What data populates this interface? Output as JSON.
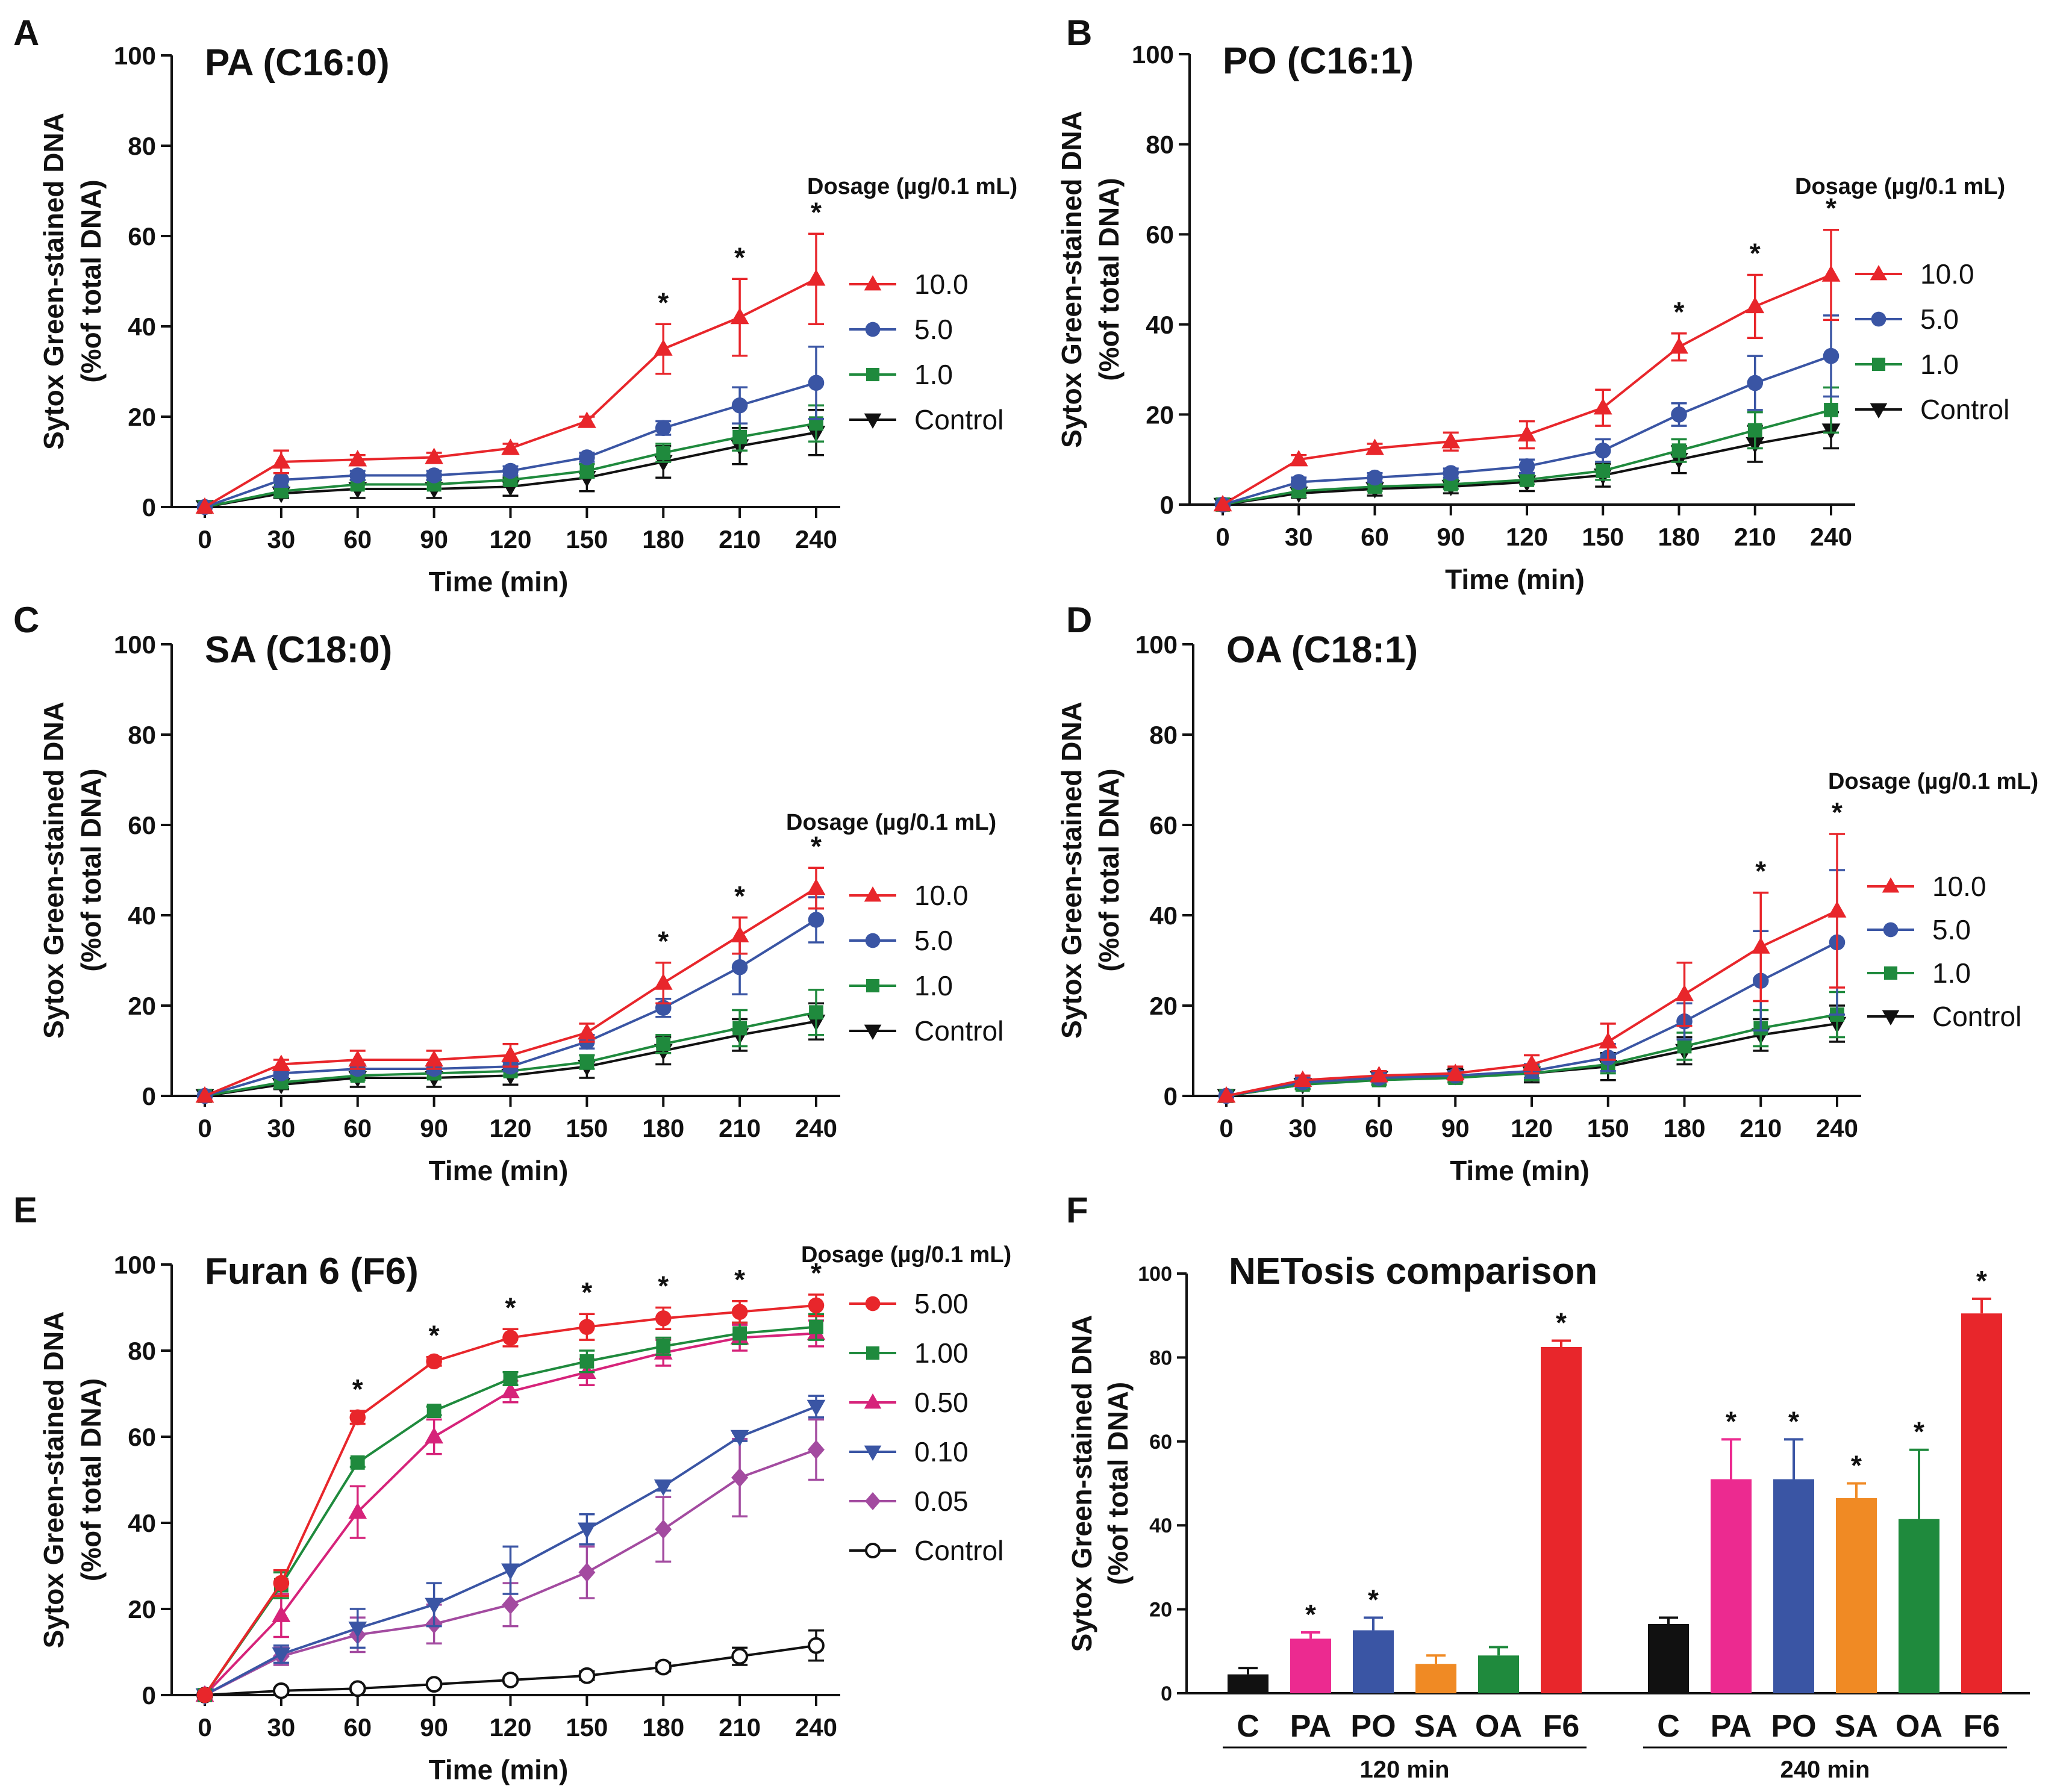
{
  "figure": {
    "y_axis_line1": "Sytox Green-stained DNA",
    "y_axis_line2": "(%of total DNA)",
    "x_axis_label": "Time (min)"
  },
  "chart_data": [
    {
      "id": "A",
      "panel_label": "A",
      "type": "line",
      "title": "PA (C16:0)",
      "xlabel": "Time (min)",
      "ylabel": "Sytox Green-stained DNA (%of total DNA)",
      "x": [
        0,
        30,
        60,
        90,
        120,
        150,
        180,
        210,
        240
      ],
      "ylim": [
        0,
        100
      ],
      "yticks": [
        0,
        20,
        40,
        60,
        80,
        100
      ],
      "legend_title": "Dosage (µg/0.1 mL)",
      "series": [
        {
          "name": "10.0",
          "color": "#e8262b",
          "marker": "triangle-up",
          "values": [
            0,
            10,
            10.5,
            11,
            13,
            19,
            35,
            42,
            50.5
          ],
          "err": [
            0,
            2.5,
            1,
            1,
            1,
            1,
            5.5,
            8.5,
            10
          ]
        },
        {
          "name": "5.0",
          "color": "#3a55a4",
          "marker": "circle",
          "values": [
            0,
            6,
            7,
            7,
            8,
            11,
            17.5,
            22.5,
            27.5
          ],
          "err": [
            0,
            1.5,
            1,
            1,
            1,
            1,
            1.5,
            4,
            8
          ]
        },
        {
          "name": "1.0",
          "color": "#1f8a3d",
          "marker": "square",
          "values": [
            0,
            3.5,
            5,
            5,
            6,
            8,
            12,
            15.5,
            18.5
          ],
          "err": [
            0,
            1,
            1,
            1,
            1,
            1.5,
            2,
            3,
            4
          ]
        },
        {
          "name": "Control",
          "color": "#111111",
          "marker": "triangle-down",
          "values": [
            0,
            3,
            4,
            4,
            4.5,
            6.5,
            10,
            13.5,
            16.5
          ],
          "err": [
            0,
            1,
            2,
            2,
            2,
            3,
            3.5,
            4,
            5
          ]
        }
      ],
      "stars_at": [
        180,
        210,
        240
      ],
      "star_symbol": "*"
    },
    {
      "id": "B",
      "panel_label": "B",
      "type": "line",
      "title": "PO (C16:1)",
      "xlabel": "Time (min)",
      "ylabel": "Sytox Green-stained DNA (%of total DNA)",
      "x": [
        0,
        30,
        60,
        90,
        120,
        150,
        180,
        210,
        240
      ],
      "ylim": [
        0,
        100
      ],
      "yticks": [
        0,
        20,
        40,
        60,
        80,
        100
      ],
      "legend_title": "Dosage (µg/0.1 mL)",
      "series": [
        {
          "name": "10.0",
          "color": "#e8262b",
          "marker": "triangle-up",
          "values": [
            0,
            10,
            12.5,
            14,
            15.5,
            21.5,
            35,
            44,
            51
          ],
          "err": [
            0,
            1,
            1,
            2,
            3,
            4,
            3,
            7,
            10
          ]
        },
        {
          "name": "5.0",
          "color": "#3a55a4",
          "marker": "circle",
          "values": [
            0,
            5,
            6,
            7,
            8.5,
            12,
            20,
            27,
            33
          ],
          "err": [
            0,
            1,
            1,
            1,
            1.5,
            2.5,
            2.5,
            6,
            9
          ]
        },
        {
          "name": "1.0",
          "color": "#1f8a3d",
          "marker": "square",
          "values": [
            0,
            3,
            4,
            4.5,
            5.5,
            7.5,
            12,
            16.5,
            21
          ],
          "err": [
            0,
            1,
            1,
            1,
            1,
            2,
            2.5,
            4,
            5
          ]
        },
        {
          "name": "Control",
          "color": "#111111",
          "marker": "triangle-down",
          "values": [
            0,
            2.5,
            3.5,
            4,
            5,
            6.5,
            10,
            13.5,
            16.5
          ],
          "err": [
            0,
            1,
            1.5,
            1.5,
            2,
            2.5,
            3,
            4,
            4
          ]
        }
      ],
      "stars_at": [
        180,
        210,
        240
      ],
      "star_symbol": "*"
    },
    {
      "id": "C",
      "panel_label": "C",
      "type": "line",
      "title": "SA (C18:0)",
      "xlabel": "Time (min)",
      "ylabel": "Sytox Green-stained DNA (%of total DNA)",
      "x": [
        0,
        30,
        60,
        90,
        120,
        150,
        180,
        210,
        240
      ],
      "ylim": [
        0,
        100
      ],
      "yticks": [
        0,
        20,
        40,
        60,
        80,
        100
      ],
      "legend_title": "Dosage (µg/0.1 mL)",
      "series": [
        {
          "name": "10.0",
          "color": "#e8262b",
          "marker": "triangle-up",
          "values": [
            0,
            7,
            8,
            8,
            9,
            14,
            25,
            35.5,
            46
          ],
          "err": [
            0,
            1,
            2,
            2,
            2.5,
            2,
            4.5,
            4,
            4.5
          ]
        },
        {
          "name": "5.0",
          "color": "#3a55a4",
          "marker": "circle",
          "values": [
            0,
            5,
            6,
            6,
            6.5,
            12,
            19.5,
            28.5,
            39
          ],
          "err": [
            0,
            1,
            1,
            1,
            1,
            1.5,
            2,
            6,
            5
          ]
        },
        {
          "name": "1.0",
          "color": "#1f8a3d",
          "marker": "square",
          "values": [
            0,
            3,
            4.5,
            5,
            5.5,
            7.5,
            11.5,
            15,
            18.5
          ],
          "err": [
            0,
            1,
            1,
            1,
            1,
            1.5,
            2,
            4,
            5
          ]
        },
        {
          "name": "Control",
          "color": "#111111",
          "marker": "triangle-down",
          "values": [
            0,
            2.5,
            4,
            4,
            4.5,
            6.5,
            10,
            13.5,
            16.5
          ],
          "err": [
            0,
            1,
            2,
            2,
            2,
            2.5,
            3,
            3.5,
            4
          ]
        }
      ],
      "stars_at": [
        180,
        210,
        240
      ],
      "star_symbol": "*"
    },
    {
      "id": "D",
      "panel_label": "D",
      "type": "line",
      "title": "OA (C18:1)",
      "xlabel": "Time (min)",
      "ylabel": "Sytox Green-stained DNA (%of total DNA)",
      "x": [
        0,
        30,
        60,
        90,
        120,
        150,
        180,
        210,
        240
      ],
      "ylim": [
        0,
        100
      ],
      "yticks": [
        0,
        20,
        40,
        60,
        80,
        100
      ],
      "legend_title": "Dosage (µg/0.1 mL)",
      "series": [
        {
          "name": "10.0",
          "color": "#e8262b",
          "marker": "triangle-up",
          "values": [
            0,
            3.5,
            4.5,
            5,
            7,
            12,
            22.5,
            33,
            41
          ],
          "err": [
            0,
            1,
            1,
            1.5,
            2,
            4,
            7,
            12,
            17
          ]
        },
        {
          "name": "5.0",
          "color": "#3a55a4",
          "marker": "circle",
          "values": [
            0,
            3,
            4,
            4.5,
            5.5,
            8.5,
            16.5,
            25.5,
            34
          ],
          "err": [
            0,
            1,
            1,
            1,
            1.5,
            3,
            4,
            11,
            16
          ]
        },
        {
          "name": "1.0",
          "color": "#1f8a3d",
          "marker": "square",
          "values": [
            0,
            2.5,
            3.5,
            4,
            5,
            7,
            11,
            15,
            18
          ],
          "err": [
            0,
            1,
            1,
            1,
            1.5,
            2,
            3,
            4,
            5
          ]
        },
        {
          "name": "Control",
          "color": "#111111",
          "marker": "triangle-down",
          "values": [
            0,
            2.5,
            4,
            4.5,
            5,
            6.5,
            10,
            13.5,
            16
          ],
          "err": [
            0,
            1,
            1.5,
            1.5,
            2,
            3,
            3,
            3.5,
            4
          ]
        }
      ],
      "stars_at": [
        210,
        240
      ],
      "star_symbol": "*"
    },
    {
      "id": "E",
      "panel_label": "E",
      "type": "line",
      "title": "Furan 6 (F6)",
      "xlabel": "Time (min)",
      "ylabel": "Sytox Green-stained DNA (%of total DNA)",
      "x": [
        0,
        30,
        60,
        90,
        120,
        150,
        180,
        210,
        240
      ],
      "ylim": [
        0,
        100
      ],
      "yticks": [
        0,
        20,
        40,
        60,
        80,
        100
      ],
      "legend_title": "Dosage (µg/0.1 mL)",
      "series": [
        {
          "name": "5.00",
          "color": "#e8262b",
          "marker": "circle",
          "values": [
            0,
            26,
            64.5,
            77.5,
            83,
            85.5,
            87.5,
            89,
            90.5
          ],
          "err": [
            0,
            3,
            1.5,
            1,
            2,
            3,
            2.5,
            2.5,
            2.5
          ]
        },
        {
          "name": "1.00",
          "color": "#1f8a3d",
          "marker": "square",
          "values": [
            0,
            25.5,
            54,
            66,
            73.5,
            77.5,
            81,
            84,
            85.5
          ],
          "err": [
            0,
            3,
            1,
            1,
            1.5,
            2.5,
            2,
            2.5,
            3
          ]
        },
        {
          "name": "0.50",
          "color": "#d6237a",
          "marker": "triangle-up",
          "values": [
            0,
            18.5,
            42.5,
            60,
            70.5,
            75,
            79.5,
            83,
            84
          ],
          "err": [
            0,
            5,
            6,
            4,
            2.5,
            3,
            3,
            3,
            3
          ]
        },
        {
          "name": "0.10",
          "color": "#3a55a4",
          "marker": "triangle-down",
          "values": [
            0,
            9.5,
            15.5,
            21,
            29,
            38.5,
            48.5,
            60,
            67
          ],
          "err": [
            0,
            2,
            4.5,
            5,
            5.5,
            3.5,
            1,
            1,
            2.5
          ]
        },
        {
          "name": "0.05",
          "color": "#a34ba0",
          "marker": "diamond",
          "values": [
            0,
            9,
            14,
            16.5,
            21,
            28.5,
            38.5,
            50.5,
            57
          ],
          "err": [
            0,
            2,
            4,
            4.5,
            5,
            6,
            7.5,
            9,
            7
          ]
        },
        {
          "name": "Control",
          "color": "#111111",
          "marker": "open-circle",
          "values": [
            0,
            1,
            1.5,
            2.5,
            3.5,
            4.5,
            6.5,
            9,
            11.5
          ],
          "err": [
            0,
            0.5,
            0.5,
            0.5,
            0.5,
            1,
            1,
            2,
            3.5
          ]
        }
      ],
      "stars_at": [
        60,
        90,
        120,
        150,
        180,
        210,
        240
      ],
      "star_symbol": "*"
    },
    {
      "id": "F",
      "panel_label": "F",
      "type": "bar",
      "title": "NETosis comparison",
      "xlabel": "",
      "ylabel": "Sytox Green-stained DNA (%of total DNA)",
      "ylim": [
        0,
        100
      ],
      "yticks": [
        0,
        20,
        40,
        60,
        80,
        100
      ],
      "groups": [
        {
          "label": "120 min",
          "categories": [
            "C",
            "PA",
            "PO",
            "SA",
            "OA",
            "F6"
          ],
          "values": [
            4.5,
            13,
            15,
            7,
            9,
            82.5
          ],
          "err": [
            1.5,
            1.5,
            3,
            2,
            2,
            1.5
          ],
          "colors": [
            "#111111",
            "#ec2a90",
            "#3a55a4",
            "#f08a24",
            "#1f8a3d",
            "#e8262b"
          ],
          "stars": [
            false,
            true,
            true,
            false,
            false,
            true
          ]
        },
        {
          "label": "240 min",
          "categories": [
            "C",
            "PA",
            "PO",
            "SA",
            "OA",
            "F6"
          ],
          "values": [
            16.5,
            51,
            51,
            46.5,
            41.5,
            90.5
          ],
          "err": [
            1.5,
            9.5,
            9.5,
            3.5,
            16.5,
            3.5
          ],
          "colors": [
            "#111111",
            "#ec2a90",
            "#3a55a4",
            "#f08a24",
            "#1f8a3d",
            "#e8262b"
          ],
          "stars": [
            false,
            true,
            true,
            true,
            true,
            true
          ]
        }
      ],
      "star_symbol": "*"
    }
  ]
}
